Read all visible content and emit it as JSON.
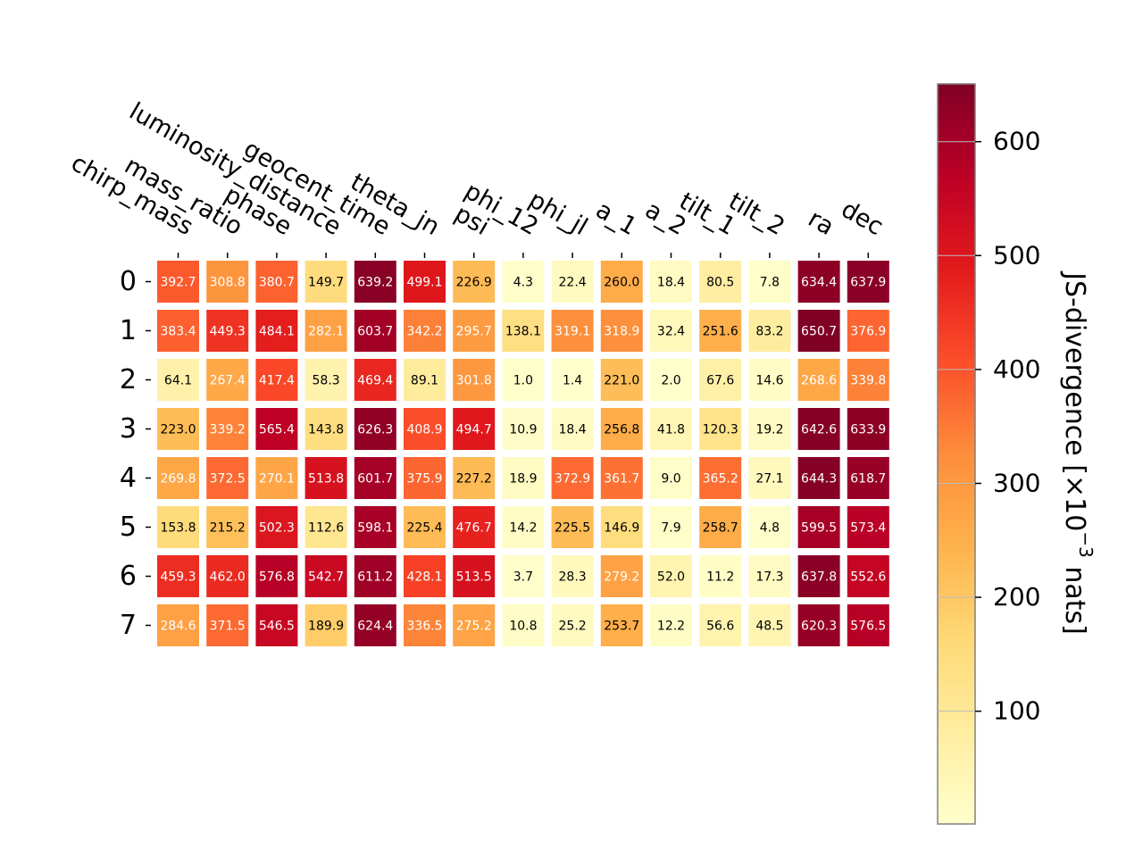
{
  "chart_data": {
    "type": "heatmap",
    "columns": [
      "chirp_mass",
      "mass_ratio",
      "phase",
      "luminosity_distance",
      "geocent_time",
      "theta_jn",
      "psi",
      "phi_12",
      "phi_jl",
      "a_1",
      "a_2",
      "tilt_1",
      "tilt_2",
      "ra",
      "dec"
    ],
    "rows": [
      "0",
      "1",
      "2",
      "3",
      "4",
      "5",
      "6",
      "7"
    ],
    "values": [
      [
        392.7,
        308.8,
        380.7,
        149.7,
        639.2,
        499.1,
        226.9,
        4.3,
        22.4,
        260.0,
        18.4,
        80.5,
        7.8,
        634.4,
        637.9
      ],
      [
        383.4,
        449.3,
        484.1,
        282.1,
        603.7,
        342.2,
        295.7,
        138.1,
        319.1,
        318.9,
        32.4,
        251.6,
        83.2,
        650.7,
        376.9
      ],
      [
        64.1,
        267.4,
        417.4,
        58.3,
        469.4,
        89.1,
        301.8,
        1.0,
        1.4,
        221.0,
        2.0,
        67.6,
        14.6,
        268.6,
        339.8
      ],
      [
        223.0,
        339.2,
        565.4,
        143.8,
        626.3,
        408.9,
        494.7,
        10.9,
        18.4,
        256.8,
        41.8,
        120.3,
        19.2,
        642.6,
        633.9
      ],
      [
        269.8,
        372.5,
        270.1,
        513.8,
        601.7,
        375.9,
        227.2,
        18.9,
        372.9,
        361.7,
        9.0,
        365.2,
        27.1,
        644.3,
        618.7
      ],
      [
        153.8,
        215.2,
        502.3,
        112.6,
        598.1,
        225.4,
        476.7,
        14.2,
        225.5,
        146.9,
        7.9,
        258.7,
        4.8,
        599.5,
        573.4
      ],
      [
        459.3,
        462.0,
        576.8,
        542.7,
        611.2,
        428.1,
        513.5,
        3.7,
        28.3,
        279.2,
        52.0,
        11.2,
        17.3,
        637.8,
        552.6
      ],
      [
        284.6,
        371.5,
        546.5,
        189.9,
        624.4,
        336.5,
        275.2,
        10.8,
        25.2,
        253.7,
        12.2,
        56.6,
        48.5,
        620.3,
        576.5
      ]
    ],
    "colorbar": {
      "label": "JS-divergence [×10",
      "label_exponent": "−3",
      "label_suffix": " nats]",
      "ticks": [
        100,
        200,
        300,
        400,
        500,
        600
      ],
      "range": [
        1.0,
        650.7
      ],
      "colormap": "YlOrRd"
    }
  }
}
